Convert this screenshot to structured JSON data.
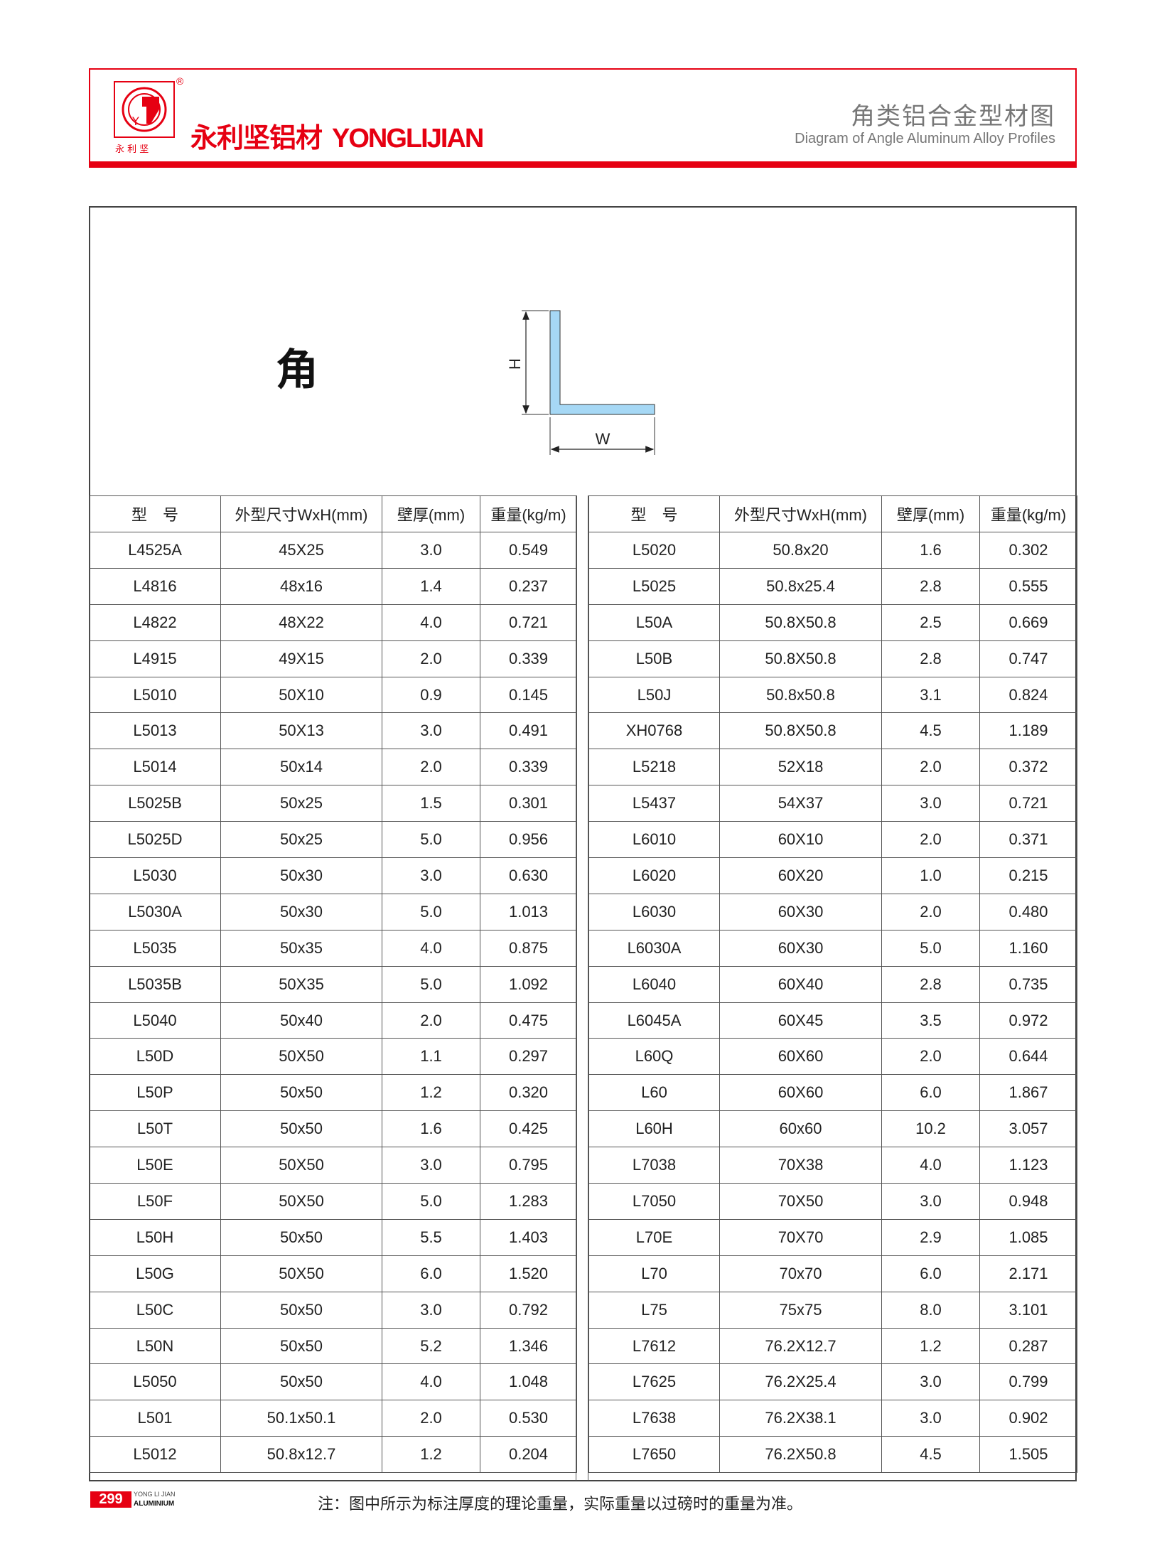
{
  "header": {
    "brand_cn": "永利坚铝材",
    "brand_en": "YONGLIJIAN",
    "logo_text": "永 利 坚",
    "registered_mark": "®",
    "title": "角类铝合金型材图",
    "subtitle": "Diagram of Angle Aluminum Alloy Profiles",
    "accent_color": "#e60012"
  },
  "diagram": {
    "category_label": "角",
    "height_label": "H",
    "width_label": "W",
    "profile_color": "#a6d8f5"
  },
  "table": {
    "columns": [
      "型　号",
      "外型尺寸WxH(mm)",
      "壁厚(mm)",
      "重量(kg/m)"
    ],
    "left_rows": [
      [
        "L4525A",
        "45X25",
        "3.0",
        "0.549"
      ],
      [
        "L4816",
        "48x16",
        "1.4",
        "0.237"
      ],
      [
        "L4822",
        "48X22",
        "4.0",
        "0.721"
      ],
      [
        "L4915",
        "49X15",
        "2.0",
        "0.339"
      ],
      [
        "L5010",
        "50X10",
        "0.9",
        "0.145"
      ],
      [
        "L5013",
        "50X13",
        "3.0",
        "0.491"
      ],
      [
        "L5014",
        "50x14",
        "2.0",
        "0.339"
      ],
      [
        "L5025B",
        "50x25",
        "1.5",
        "0.301"
      ],
      [
        "L5025D",
        "50x25",
        "5.0",
        "0.956"
      ],
      [
        "L5030",
        "50x30",
        "3.0",
        "0.630"
      ],
      [
        "L5030A",
        "50x30",
        "5.0",
        "1.013"
      ],
      [
        "L5035",
        "50x35",
        "4.0",
        "0.875"
      ],
      [
        "L5035B",
        "50X35",
        "5.0",
        "1.092"
      ],
      [
        "L5040",
        "50x40",
        "2.0",
        "0.475"
      ],
      [
        "L50D",
        "50X50",
        "1.1",
        "0.297"
      ],
      [
        "L50P",
        "50x50",
        "1.2",
        "0.320"
      ],
      [
        "L50T",
        "50x50",
        "1.6",
        "0.425"
      ],
      [
        "L50E",
        "50X50",
        "3.0",
        "0.795"
      ],
      [
        "L50F",
        "50X50",
        "5.0",
        "1.283"
      ],
      [
        "L50H",
        "50x50",
        "5.5",
        "1.403"
      ],
      [
        "L50G",
        "50X50",
        "6.0",
        "1.520"
      ],
      [
        "L50C",
        "50x50",
        "3.0",
        "0.792"
      ],
      [
        "L50N",
        "50x50",
        "5.2",
        "1.346"
      ],
      [
        "L5050",
        "50x50",
        "4.0",
        "1.048"
      ],
      [
        "L501",
        "50.1x50.1",
        "2.0",
        "0.530"
      ],
      [
        "L5012",
        "50.8x12.7",
        "1.2",
        "0.204"
      ]
    ],
    "right_rows": [
      [
        "L5020",
        "50.8x20",
        "1.6",
        "0.302"
      ],
      [
        "L5025",
        "50.8x25.4",
        "2.8",
        "0.555"
      ],
      [
        "L50A",
        "50.8X50.8",
        "2.5",
        "0.669"
      ],
      [
        "L50B",
        "50.8X50.8",
        "2.8",
        "0.747"
      ],
      [
        "L50J",
        "50.8x50.8",
        "3.1",
        "0.824"
      ],
      [
        "XH0768",
        "50.8X50.8",
        "4.5",
        "1.189"
      ],
      [
        "L5218",
        "52X18",
        "2.0",
        "0.372"
      ],
      [
        "L5437",
        "54X37",
        "3.0",
        "0.721"
      ],
      [
        "L6010",
        "60X10",
        "2.0",
        "0.371"
      ],
      [
        "L6020",
        "60X20",
        "1.0",
        "0.215"
      ],
      [
        "L6030",
        "60X30",
        "2.0",
        "0.480"
      ],
      [
        "L6030A",
        "60X30",
        "5.0",
        "1.160"
      ],
      [
        "L6040",
        "60X40",
        "2.8",
        "0.735"
      ],
      [
        "L6045A",
        "60X45",
        "3.5",
        "0.972"
      ],
      [
        "L60Q",
        "60X60",
        "2.0",
        "0.644"
      ],
      [
        "L60",
        "60X60",
        "6.0",
        "1.867"
      ],
      [
        "L60H",
        "60x60",
        "10.2",
        "3.057"
      ],
      [
        "L7038",
        "70X38",
        "4.0",
        "1.123"
      ],
      [
        "L7050",
        "70X50",
        "3.0",
        "0.948"
      ],
      [
        "L70E",
        "70X70",
        "2.9",
        "1.085"
      ],
      [
        "L70",
        "70x70",
        "6.0",
        "2.171"
      ],
      [
        "L75",
        "75x75",
        "8.0",
        "3.101"
      ],
      [
        "L7612",
        "76.2X12.7",
        "1.2",
        "0.287"
      ],
      [
        "L7625",
        "76.2X25.4",
        "3.0",
        "0.799"
      ],
      [
        "L7638",
        "76.2X38.1",
        "3.0",
        "0.902"
      ],
      [
        "L7650",
        "76.2X50.8",
        "4.5",
        "1.505"
      ]
    ]
  },
  "footer": {
    "page_number": "299",
    "brand_line1": "YONG LI JIAN",
    "brand_line2": "ALUMINIUM",
    "note": "注：图中所示为标注厚度的理论重量，实际重量以过磅时的重量为准。"
  }
}
